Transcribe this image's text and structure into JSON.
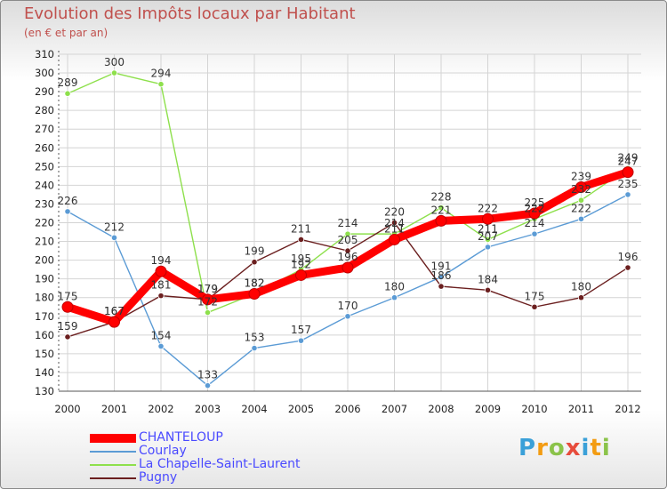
{
  "title": "Evolution des Impôts locaux par Habitant",
  "subtitle": "(en € et par an)",
  "logo": {
    "text": "Proxiti",
    "colors": [
      "#3aa0d8",
      "#f39c12",
      "#8bc34a",
      "#e74c3c",
      "#3aa0d8",
      "#f39c12",
      "#8bc34a"
    ]
  },
  "chart_data": {
    "type": "line",
    "title": "Evolution des Impôts locaux par Habitant",
    "subtitle": "(en € et par an)",
    "xlabel": "",
    "ylabel": "",
    "x": [
      "2000",
      "2001",
      "2002",
      "2003",
      "2004",
      "2005",
      "2006",
      "2007",
      "2008",
      "2009",
      "2010",
      "2011",
      "2012"
    ],
    "ylim": [
      130,
      310
    ],
    "yticks": [
      130,
      140,
      150,
      160,
      170,
      180,
      190,
      200,
      210,
      220,
      230,
      240,
      250,
      260,
      270,
      280,
      290,
      300,
      310
    ],
    "grid": true,
    "legend": "bottom-left",
    "series": [
      {
        "name": "CHANTELOUP",
        "color": "#ff0000",
        "values": [
          175,
          167,
          194,
          179,
          182,
          192,
          196,
          211,
          221,
          222,
          225,
          239,
          247
        ]
      },
      {
        "name": "Courlay",
        "color": "#5b9bd5",
        "values": [
          226,
          212,
          154,
          133,
          153,
          157,
          170,
          180,
          191,
          207,
          214,
          222,
          235
        ]
      },
      {
        "name": "La Chapelle-Saint-Laurent",
        "color": "#8ee04c",
        "values": [
          289,
          300,
          294,
          172,
          182,
          195,
          214,
          214,
          228,
          211,
          222,
          232,
          249
        ]
      },
      {
        "name": "Pugny",
        "color": "#6b1f1f",
        "values": [
          159,
          167,
          181,
          179,
          199,
          211,
          205,
          220,
          186,
          184,
          175,
          180,
          196
        ]
      }
    ]
  }
}
